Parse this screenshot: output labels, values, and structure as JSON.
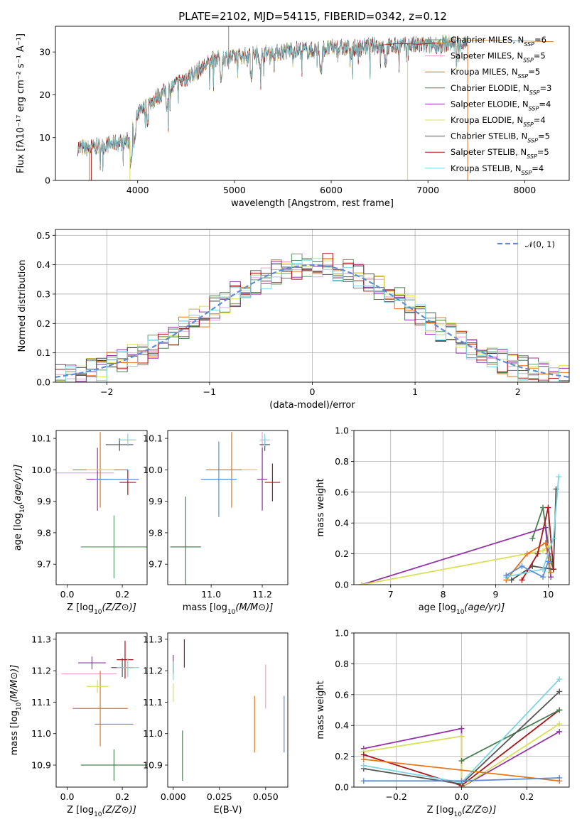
{
  "chart_data": [
    {
      "type": "line",
      "title": "PLATE=2102, MJD=54115, FIBERID=0342, z=0.12",
      "xlabel": "wavelength [Angstrom, rest frame]",
      "ylabel": "Flux [fλ10⁻¹⁷ erg cm⁻² s⁻¹ A⁻¹]",
      "xlim": [
        3150,
        8460
      ],
      "ylim": [
        0,
        36
      ],
      "xticks": [
        "4000",
        "5000",
        "6000",
        "7000",
        "8000"
      ],
      "yticks": [
        "0",
        "10",
        "20",
        "30"
      ],
      "legend_position": "upper right",
      "spectrum_range_angstrom": [
        3380,
        7410
      ],
      "continuum": {
        "x": [
          3380,
          3500,
          3650,
          3800,
          3920,
          4000,
          4200,
          4400,
          4600,
          4800,
          5000,
          5200,
          5400,
          5600,
          5800,
          6000,
          6200,
          6400,
          6600,
          6800,
          7000,
          7200,
          7410
        ],
        "y": [
          7.6,
          7.5,
          8.2,
          8.8,
          9.3,
          15.5,
          19.5,
          22.5,
          25.2,
          28.5,
          28.8,
          29.5,
          29.8,
          30.5,
          30.3,
          31.0,
          30.8,
          31.4,
          31.2,
          31.6,
          31.5,
          32.0,
          31.8
        ]
      },
      "model_lines": [
        {
          "x": [
            7100,
            7300,
            7500,
            7700,
            7900,
            8100,
            8300
          ],
          "y": [
            32.0,
            32.6,
            32.8,
            32.7,
            32.6,
            32.5,
            32.4
          ]
        },
        {
          "x": [
            6500,
            6700,
            6900,
            7100
          ],
          "y": [
            31.6,
            32.0,
            31.8,
            32.1
          ]
        }
      ],
      "series": [
        {
          "name": "Chabrier MILES, N_SSP=6",
          "color": "#5e9e68"
        },
        {
          "name": "Salpeter MILES, N_SSP=5",
          "color": "#e8a1cf"
        },
        {
          "name": "Kroupa MILES, N_SSP=5",
          "color": "#c47c16"
        },
        {
          "name": "Chabrier ELODIE, N_SSP=3",
          "color": "#4a7f52"
        },
        {
          "name": "Salpeter ELODIE, N_SSP=4",
          "color": "#9334a8"
        },
        {
          "name": "Kroupa ELODIE, N_SSP=4",
          "color": "#d8e055"
        },
        {
          "name": "Chabrier STELIB, N_SSP=5",
          "color": "#555555"
        },
        {
          "name": "Salpeter STELIB, N_SSP=5",
          "color": "#a8161b"
        },
        {
          "name": "Kroupa STELIB, N_SSP=4",
          "color": "#7dd6e0"
        }
      ],
      "legend": [
        {
          "label": "Chabrier MILES, N",
          "sub": "SSP",
          "post": "=6"
        },
        {
          "label": "Salpeter MILES, N",
          "sub": "SSP",
          "post": "=5"
        },
        {
          "label": "Kroupa MILES, N",
          "sub": "SSP",
          "post": "=5"
        },
        {
          "label": "Chabrier ELODIE, N",
          "sub": "SSP",
          "post": "=3"
        },
        {
          "label": "Salpeter ELODIE, N",
          "sub": "SSP",
          "post": "=4"
        },
        {
          "label": "Kroupa ELODIE, N",
          "sub": "SSP",
          "post": "=4"
        },
        {
          "label": "Chabrier STELIB, N",
          "sub": "SSP",
          "post": "=5"
        },
        {
          "label": "Salpeter STELIB, N",
          "sub": "SSP",
          "post": "=5"
        },
        {
          "label": "Kroupa STELIB, N",
          "sub": "SSP",
          "post": "=4"
        }
      ]
    },
    {
      "type": "histogram",
      "xlabel": "(data-model)/error",
      "ylabel": "Normed distribution",
      "xlim": [
        -2.5,
        2.5
      ],
      "ylim": [
        0,
        0.52
      ],
      "xticks": [
        "−2",
        "−1",
        "0",
        "1",
        "2"
      ],
      "yticks": [
        "0.0",
        "0.1",
        "0.2",
        "0.3",
        "0.4",
        "0.5"
      ],
      "grid": true,
      "legend_position": "upper right",
      "reference_curve": {
        "name": "N(0,1)",
        "color": "#5b8ed6",
        "style": "dashed"
      },
      "bin_width": 0.1,
      "bin_start": -2.5,
      "bin_heights_approx_note": "per-series histogram scatter around the N(0,1) curve, max about 0.5 near x=0.25",
      "series_colors": [
        "#5e9e68",
        "#e8a1cf",
        "#e8751a",
        "#4a7f52",
        "#9334a8",
        "#d8e055",
        "#555555",
        "#a8161b",
        "#7dd6e0"
      ]
    },
    {
      "type": "errorbar",
      "xlabel": "Z [log10(Z/Z⊙)]",
      "ylabel": "age [log10(age/yr)]",
      "xlim": [
        -0.04,
        0.29
      ],
      "ylim": [
        9.635,
        10.125
      ],
      "xticks": [
        "0.0",
        "0.2"
      ],
      "yticks": [
        "9.7",
        "9.8",
        "9.9",
        "10.0",
        "10.1"
      ],
      "points": [
        {
          "x": 0.17,
          "y": 9.755,
          "xerr": 0.12,
          "yerr": 0.1,
          "color": "#5e9e68"
        },
        {
          "x": 0.05,
          "y": 9.99,
          "xerr": 0.12,
          "yerr": 0.0,
          "color": "#e8a1cf"
        },
        {
          "x": 0.12,
          "y": 10.0,
          "xerr": 0.1,
          "yerr": 0.12,
          "color": "#e8751a"
        },
        {
          "x": 0.11,
          "y": 9.97,
          "xerr": 0.04,
          "yerr": 0.1,
          "color": "#9334a8"
        },
        {
          "x": 0.12,
          "y": 10.0,
          "xerr": 0.05,
          "yerr": 0.0,
          "color": "#d8e055"
        },
        {
          "x": 0.19,
          "y": 10.08,
          "xerr": 0.05,
          "yerr": 0.02,
          "color": "#555555"
        },
        {
          "x": 0.22,
          "y": 9.96,
          "xerr": 0.03,
          "yerr": 0.04,
          "color": "#a8161b"
        },
        {
          "x": 0.22,
          "y": 10.095,
          "xerr": 0.03,
          "yerr": 0.02,
          "color": "#7dd6e0"
        },
        {
          "x": 0.18,
          "y": 9.97,
          "xerr": 0.08,
          "yerr": 0.0,
          "color": "#5b8ed6"
        }
      ]
    },
    {
      "type": "errorbar",
      "xlabel": "mass [log10(M/M⊙)]",
      "ylabel": "",
      "xlim": [
        10.83,
        11.3
      ],
      "ylim": [
        9.635,
        10.125
      ],
      "xticks": [
        "11.0",
        "11.2"
      ],
      "yticks": [
        "9.7",
        "9.8",
        "9.9",
        "10.0",
        "10.1"
      ],
      "points": [
        {
          "x": 10.9,
          "y": 9.755,
          "xerr": 0.06,
          "yerr": 0.16,
          "color": "#4a7f52"
        },
        {
          "x": 11.2,
          "y": 10.0,
          "xerr": 0.0,
          "yerr": 0.12,
          "color": "#e8a1cf"
        },
        {
          "x": 11.08,
          "y": 10.0,
          "xerr": 0.1,
          "yerr": 0.12,
          "color": "#e8751a"
        },
        {
          "x": 11.2,
          "y": 9.97,
          "xerr": 0.02,
          "yerr": 0.1,
          "color": "#9334a8"
        },
        {
          "x": 11.15,
          "y": 10.0,
          "xerr": 0.03,
          "yerr": 0.0,
          "color": "#d8e055"
        },
        {
          "x": 11.21,
          "y": 10.08,
          "xerr": 0.02,
          "yerr": 0.02,
          "color": "#555555"
        },
        {
          "x": 11.24,
          "y": 9.96,
          "xerr": 0.03,
          "yerr": 0.06,
          "color": "#a8161b"
        },
        {
          "x": 11.21,
          "y": 10.095,
          "xerr": 0.02,
          "yerr": 0.02,
          "color": "#7dd6e0"
        },
        {
          "x": 11.03,
          "y": 9.97,
          "xerr": 0.07,
          "yerr": 0.12,
          "color": "#5b8ed6"
        }
      ]
    },
    {
      "type": "line",
      "xlabel": "age [log10(age/yr)]",
      "ylabel": "mass weight",
      "xlim": [
        6.3,
        10.4
      ],
      "ylim": [
        0,
        1
      ],
      "xticks": [
        "7",
        "8",
        "9",
        "10"
      ],
      "yticks": [
        "0.0",
        "0.2",
        "0.4",
        "0.6",
        "0.8",
        "1.0"
      ],
      "grid": true,
      "series": [
        {
          "color": "#4a7f52",
          "x": [
            9.7,
            9.9,
            10.05,
            10.1
          ],
          "y": [
            0.3,
            0.5,
            0.15,
            0.1
          ]
        },
        {
          "color": "#9334a8",
          "x": [
            6.45,
            9.95,
            10.0,
            10.05
          ],
          "y": [
            0.0,
            0.37,
            0.2,
            0.05
          ]
        },
        {
          "color": "#d8e055",
          "x": [
            6.45,
            9.9,
            10.0
          ],
          "y": [
            0.0,
            0.22,
            0.25
          ]
        },
        {
          "color": "#e8751a",
          "x": [
            9.2,
            9.6,
            9.95,
            10.05
          ],
          "y": [
            0.03,
            0.2,
            0.27,
            0.08
          ]
        },
        {
          "color": "#555555",
          "x": [
            9.3,
            9.7,
            10.1,
            10.15
          ],
          "y": [
            0.03,
            0.12,
            0.1,
            0.62
          ]
        },
        {
          "color": "#a8161b",
          "x": [
            9.5,
            9.8,
            10.0,
            10.1
          ],
          "y": [
            0.03,
            0.2,
            0.5,
            0.1
          ]
        },
        {
          "color": "#7dd6e0",
          "x": [
            9.2,
            9.9,
            10.1,
            10.2
          ],
          "y": [
            0.05,
            0.1,
            0.3,
            0.7
          ]
        },
        {
          "color": "#5b8ed6",
          "x": [
            9.2,
            9.5,
            9.9,
            10.0
          ],
          "y": [
            0.06,
            0.12,
            0.05,
            0.15
          ]
        }
      ]
    },
    {
      "type": "errorbar",
      "xlabel": "Z [log10(Z/Z⊙)]",
      "ylabel": "mass [log10(M/M⊙)]",
      "xlim": [
        -0.04,
        0.29
      ],
      "ylim": [
        10.83,
        11.32
      ],
      "xticks": [
        "0.0",
        "0.2"
      ],
      "yticks": [
        "10.9",
        "11.0",
        "11.1",
        "11.2",
        "11.3"
      ],
      "points": [
        {
          "x": 0.17,
          "y": 10.9,
          "xerr": 0.12,
          "yerr": 0.05,
          "color": "#4a7f52"
        },
        {
          "x": 0.08,
          "y": 11.19,
          "xerr": 0.1,
          "yerr": 0.0,
          "color": "#e8a1cf"
        },
        {
          "x": 0.12,
          "y": 11.08,
          "xerr": 0.1,
          "yerr": 0.12,
          "color": "#e8751a"
        },
        {
          "x": 0.09,
          "y": 11.225,
          "xerr": 0.05,
          "yerr": 0.02,
          "color": "#9334a8"
        },
        {
          "x": 0.11,
          "y": 11.15,
          "xerr": 0.04,
          "yerr": 0.02,
          "color": "#d8e055"
        },
        {
          "x": 0.2,
          "y": 11.21,
          "xerr": 0.04,
          "yerr": 0.03,
          "color": "#555555"
        },
        {
          "x": 0.21,
          "y": 11.235,
          "xerr": 0.03,
          "yerr": 0.06,
          "color": "#a8161b"
        },
        {
          "x": 0.22,
          "y": 11.21,
          "xerr": 0.04,
          "yerr": 0.03,
          "color": "#7dd6e0"
        },
        {
          "x": 0.17,
          "y": 11.03,
          "xerr": 0.07,
          "yerr": 0.0,
          "color": "#5b8ed6"
        }
      ]
    },
    {
      "type": "errorbar",
      "xlabel": "E(B-V)",
      "ylabel": "",
      "xlim": [
        -0.003,
        0.062
      ],
      "ylim": [
        10.83,
        11.32
      ],
      "xticks": [
        "0.000",
        "0.025",
        "0.050"
      ],
      "yticks": [
        "10.9",
        "11.0",
        "11.1",
        "11.2",
        "11.3"
      ],
      "points": [
        {
          "x": 0.005,
          "y": 10.93,
          "xerr": 0.0,
          "yerr": 0.08,
          "color": "#4a7f52"
        },
        {
          "x": 0.05,
          "y": 11.15,
          "xerr": 0.0,
          "yerr": 0.07,
          "color": "#e8a1cf"
        },
        {
          "x": 0.044,
          "y": 11.03,
          "xerr": 0.0,
          "yerr": 0.09,
          "color": "#e8751a"
        },
        {
          "x": 0.0,
          "y": 11.22,
          "xerr": 0.0,
          "yerr": 0.03,
          "color": "#9334a8"
        },
        {
          "x": 0.0,
          "y": 11.13,
          "xerr": 0.0,
          "yerr": 0.03,
          "color": "#d8e055"
        },
        {
          "x": 0.0,
          "y": 11.21,
          "xerr": 0.0,
          "yerr": 0.02,
          "color": "#555555"
        },
        {
          "x": 0.006,
          "y": 11.255,
          "xerr": 0.0,
          "yerr": 0.045,
          "color": "#a8161b"
        },
        {
          "x": 0.0,
          "y": 11.2,
          "xerr": 0.0,
          "yerr": 0.03,
          "color": "#7dd6e0"
        },
        {
          "x": 0.06,
          "y": 11.03,
          "xerr": 0.0,
          "yerr": 0.09,
          "color": "#5b8ed6"
        }
      ]
    },
    {
      "type": "line",
      "xlabel": "Z [log10(Z/Z⊙)]",
      "ylabel": "mass weight",
      "xlim": [
        -0.33,
        0.33
      ],
      "ylim": [
        0,
        1
      ],
      "xticks": [
        "−0.2",
        "0.0",
        "0.2"
      ],
      "yticks": [
        "0.0",
        "0.2",
        "0.4",
        "0.6",
        "0.8",
        "1.0"
      ],
      "grid": true,
      "series": [
        {
          "color": "#9334a8",
          "x": [
            -0.3,
            0.0,
            0.0,
            0.3
          ],
          "y": [
            0.25,
            0.38,
            0.0,
            0.36
          ]
        },
        {
          "color": "#d8e055",
          "x": [
            -0.3,
            0.0,
            0.0,
            0.3
          ],
          "y": [
            0.23,
            0.33,
            0.0,
            0.41
          ]
        },
        {
          "color": "#a8161b",
          "x": [
            -0.3,
            0.0,
            0.3
          ],
          "y": [
            0.21,
            0.01,
            0.5
          ]
        },
        {
          "color": "#4a7f52",
          "x": [
            0.0,
            0.3
          ],
          "y": [
            0.17,
            0.5
          ]
        },
        {
          "color": "#555555",
          "x": [
            -0.3,
            0.0,
            0.3
          ],
          "y": [
            0.12,
            0.02,
            0.62
          ]
        },
        {
          "color": "#7dd6e0",
          "x": [
            -0.3,
            0.0,
            0.3
          ],
          "y": [
            0.14,
            0.03,
            0.7
          ]
        },
        {
          "color": "#e8751a",
          "x": [
            -0.3,
            0.3
          ],
          "y": [
            0.18,
            0.04
          ]
        },
        {
          "color": "#5b8ed6",
          "x": [
            -0.3,
            0.0,
            0.3
          ],
          "y": [
            0.04,
            0.04,
            0.06
          ]
        }
      ]
    }
  ],
  "texts": {
    "title": "PLATE=2102, MJD=54115, FIBERID=0342, z=0.12",
    "legend_normal": "𝒩(0, 1)"
  }
}
